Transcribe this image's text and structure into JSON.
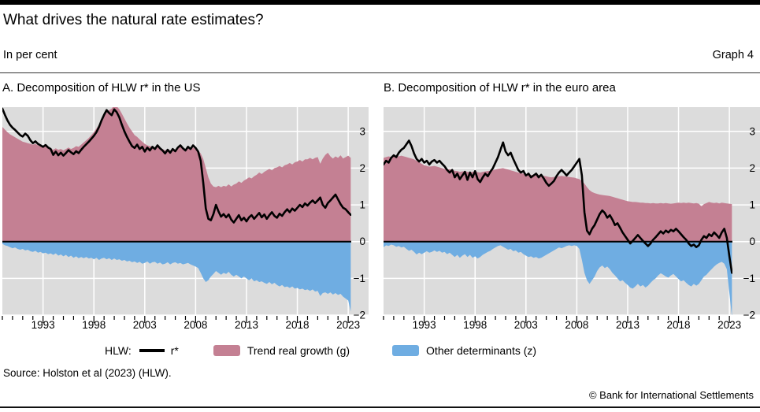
{
  "header": {
    "title": "What drives the natural rate estimates?",
    "subtitle": "In per cent",
    "graph_label": "Graph 4"
  },
  "legend": {
    "prefix": "HLW:",
    "rstar_label": "r*",
    "g_label": "Trend real growth (g)",
    "z_label": "Other determinants (z)"
  },
  "source": "Source: Holston et al (2023) (HLW).",
  "copyright": "© Bank for International Settlements",
  "colors": {
    "g_area": "#c48093",
    "z_area": "#6fade2",
    "line": "#000000",
    "plot_bg": "#dcdcdc",
    "gridline": "#ffffff",
    "zero_line": "#000000"
  },
  "chart_data": [
    {
      "type": "area",
      "title": "A. Decomposition of HLW r* in the US",
      "x_start": 1989.0,
      "x_step_years": 0.25,
      "xlim": [
        1989,
        2023.3
      ],
      "ylim": [
        -2,
        3.66
      ],
      "x_ticks_labeled": [
        1993,
        1998,
        2003,
        2008,
        2013,
        2018,
        2023
      ],
      "y_ticks": [
        3,
        2,
        1,
        0,
        -1,
        -2
      ],
      "y_tick_labels": [
        "3",
        "2",
        "1",
        "0",
        "−1",
        "−2"
      ],
      "grid": true,
      "legend_position": "bottom",
      "series": [
        {
          "name": "Trend real growth (g)",
          "kind": "area",
          "values": [
            3.12,
            3.05,
            2.98,
            2.92,
            2.88,
            2.84,
            2.8,
            2.76,
            2.72,
            2.7,
            2.68,
            2.66,
            2.64,
            2.66,
            2.62,
            2.6,
            2.58,
            2.6,
            2.56,
            2.54,
            2.5,
            2.54,
            2.5,
            2.52,
            2.48,
            2.52,
            2.56,
            2.52,
            2.55,
            2.6,
            2.58,
            2.64,
            2.7,
            2.76,
            2.82,
            2.9,
            2.98,
            3.08,
            3.18,
            3.3,
            3.4,
            3.52,
            3.58,
            3.62,
            3.72,
            3.68,
            3.6,
            3.48,
            3.35,
            3.22,
            3.1,
            3.0,
            2.9,
            2.85,
            2.78,
            2.72,
            2.66,
            2.62,
            2.6,
            2.58,
            2.56,
            2.58,
            2.54,
            2.52,
            2.48,
            2.52,
            2.48,
            2.52,
            2.5,
            2.56,
            2.58,
            2.52,
            2.5,
            2.56,
            2.52,
            2.56,
            2.52,
            2.48,
            2.4,
            2.25,
            2.0,
            1.75,
            1.58,
            1.5,
            1.48,
            1.52,
            1.48,
            1.52,
            1.5,
            1.56,
            1.5,
            1.55,
            1.58,
            1.64,
            1.6,
            1.66,
            1.7,
            1.75,
            1.72,
            1.78,
            1.82,
            1.88,
            1.84,
            1.9,
            1.94,
            1.98,
            1.94,
            2.0,
            2.02,
            2.06,
            2.02,
            2.08,
            2.1,
            2.14,
            2.1,
            2.16,
            2.18,
            2.22,
            2.18,
            2.24,
            2.24,
            2.28,
            2.24,
            2.28,
            2.3,
            2.12,
            2.26,
            2.36,
            2.42,
            2.32,
            2.26,
            2.32,
            2.28,
            2.35,
            2.26,
            2.3,
            2.34,
            2.28
          ]
        },
        {
          "name": "Other determinants (z)",
          "kind": "area",
          "values": [
            -0.06,
            -0.1,
            -0.12,
            -0.15,
            -0.18,
            -0.16,
            -0.2,
            -0.22,
            -0.2,
            -0.24,
            -0.22,
            -0.26,
            -0.28,
            -0.25,
            -0.3,
            -0.28,
            -0.32,
            -0.3,
            -0.34,
            -0.32,
            -0.36,
            -0.32,
            -0.38,
            -0.35,
            -0.4,
            -0.36,
            -0.42,
            -0.38,
            -0.44,
            -0.4,
            -0.45,
            -0.42,
            -0.45,
            -0.42,
            -0.46,
            -0.44,
            -0.48,
            -0.44,
            -0.5,
            -0.46,
            -0.44,
            -0.48,
            -0.45,
            -0.5,
            -0.46,
            -0.5,
            -0.48,
            -0.52,
            -0.5,
            -0.54,
            -0.52,
            -0.56,
            -0.54,
            -0.58,
            -0.55,
            -0.6,
            -0.58,
            -0.54,
            -0.6,
            -0.56,
            -0.55,
            -0.6,
            -0.57,
            -0.62,
            -0.6,
            -0.56,
            -0.62,
            -0.58,
            -0.56,
            -0.6,
            -0.58,
            -0.62,
            -0.6,
            -0.58,
            -0.62,
            -0.65,
            -0.68,
            -0.72,
            -0.85,
            -1.0,
            -1.1,
            -1.05,
            -0.95,
            -0.88,
            -0.8,
            -0.85,
            -0.9,
            -0.85,
            -0.88,
            -0.82,
            -0.9,
            -0.95,
            -0.9,
            -0.95,
            -1.0,
            -0.95,
            -1.0,
            -1.05,
            -1.0,
            -1.08,
            -1.05,
            -1.1,
            -1.08,
            -1.12,
            -1.15,
            -1.1,
            -1.16,
            -1.12,
            -1.18,
            -1.22,
            -1.18,
            -1.24,
            -1.22,
            -1.26,
            -1.22,
            -1.28,
            -1.26,
            -1.3,
            -1.28,
            -1.32,
            -1.3,
            -1.34,
            -1.3,
            -1.36,
            -1.34,
            -1.48,
            -1.4,
            -1.38,
            -1.42,
            -1.38,
            -1.44,
            -1.4,
            -1.45,
            -1.42,
            -1.5,
            -1.55,
            -1.6,
            -1.9
          ]
        },
        {
          "name": "r*",
          "kind": "line",
          "values": [
            3.62,
            3.45,
            3.3,
            3.18,
            3.1,
            3.04,
            2.97,
            2.9,
            2.86,
            2.94,
            2.88,
            2.76,
            2.68,
            2.73,
            2.66,
            2.62,
            2.58,
            2.63,
            2.56,
            2.52,
            2.36,
            2.45,
            2.35,
            2.42,
            2.34,
            2.41,
            2.49,
            2.43,
            2.38,
            2.46,
            2.41,
            2.5,
            2.58,
            2.65,
            2.72,
            2.8,
            2.88,
            2.98,
            3.12,
            3.3,
            3.45,
            3.58,
            3.5,
            3.44,
            3.6,
            3.52,
            3.38,
            3.18,
            3.0,
            2.85,
            2.72,
            2.6,
            2.55,
            2.64,
            2.52,
            2.58,
            2.45,
            2.56,
            2.48,
            2.58,
            2.52,
            2.62,
            2.54,
            2.48,
            2.4,
            2.5,
            2.42,
            2.52,
            2.46,
            2.56,
            2.62,
            2.54,
            2.48,
            2.58,
            2.52,
            2.62,
            2.55,
            2.45,
            2.2,
            1.6,
            0.9,
            0.62,
            0.58,
            0.75,
            1.0,
            0.82,
            0.68,
            0.75,
            0.66,
            0.74,
            0.6,
            0.52,
            0.62,
            0.72,
            0.58,
            0.65,
            0.55,
            0.66,
            0.72,
            0.62,
            0.7,
            0.78,
            0.66,
            0.74,
            0.62,
            0.72,
            0.8,
            0.7,
            0.65,
            0.76,
            0.7,
            0.8,
            0.88,
            0.8,
            0.9,
            0.84,
            0.92,
            1.0,
            0.94,
            1.04,
            0.98,
            1.06,
            1.12,
            1.05,
            1.12,
            1.2,
            1.0,
            0.92,
            1.05,
            1.12,
            1.2,
            1.28,
            1.15,
            1.02,
            0.92,
            0.88,
            0.8,
            0.73
          ]
        }
      ]
    },
    {
      "type": "area",
      "title": "B. Decomposition of HLW r* in the euro area",
      "x_start": 1989.0,
      "x_step_years": 0.25,
      "xlim": [
        1989,
        2023.3
      ],
      "ylim": [
        -2,
        3.66
      ],
      "x_ticks_labeled": [
        1993,
        1998,
        2003,
        2008,
        2013,
        2018,
        2023
      ],
      "y_ticks": [
        3,
        2,
        1,
        0,
        -1,
        -2
      ],
      "y_tick_labels": [
        "3",
        "2",
        "1",
        "0",
        "−1",
        "−2"
      ],
      "grid": true,
      "legend_position": "bottom",
      "series": [
        {
          "name": "Trend real growth (g)",
          "kind": "area",
          "values": [
            2.28,
            2.3,
            2.32,
            2.3,
            2.32,
            2.34,
            2.32,
            2.34,
            2.32,
            2.3,
            2.28,
            2.26,
            2.24,
            2.2,
            2.16,
            2.12,
            2.08,
            2.06,
            2.04,
            2.05,
            2.06,
            2.04,
            2.02,
            2.0,
            1.98,
            1.96,
            1.97,
            1.95,
            1.93,
            1.92,
            1.9,
            1.91,
            1.92,
            1.9,
            1.89,
            1.9,
            1.91,
            1.89,
            1.88,
            1.9,
            1.91,
            1.92,
            1.93,
            1.95,
            1.96,
            1.98,
            1.99,
            2.0,
            1.98,
            1.96,
            1.94,
            1.92,
            1.9,
            1.88,
            1.86,
            1.85,
            1.84,
            1.82,
            1.81,
            1.82,
            1.83,
            1.82,
            1.8,
            1.79,
            1.78,
            1.76,
            1.75,
            1.76,
            1.77,
            1.78,
            1.79,
            1.78,
            1.77,
            1.76,
            1.75,
            1.74,
            1.72,
            1.7,
            1.65,
            1.58,
            1.48,
            1.4,
            1.35,
            1.32,
            1.3,
            1.28,
            1.27,
            1.26,
            1.25,
            1.24,
            1.22,
            1.2,
            1.18,
            1.16,
            1.14,
            1.12,
            1.1,
            1.09,
            1.08,
            1.08,
            1.07,
            1.06,
            1.06,
            1.05,
            1.05,
            1.04,
            1.05,
            1.04,
            1.04,
            1.05,
            1.04,
            1.05,
            1.04,
            1.03,
            1.04,
            1.05,
            1.06,
            1.05,
            1.06,
            1.05,
            1.06,
            1.05,
            1.04,
            1.05,
            1.03,
            0.96,
            1.02,
            1.05,
            1.08,
            1.06,
            1.05,
            1.06,
            1.04,
            1.06,
            1.05,
            1.04,
            1.03,
            1.02
          ]
        },
        {
          "name": "Other determinants (z)",
          "kind": "area",
          "values": [
            -0.15,
            -0.1,
            -0.12,
            -0.08,
            -0.1,
            -0.14,
            -0.12,
            -0.16,
            -0.14,
            -0.2,
            -0.25,
            -0.22,
            -0.28,
            -0.35,
            -0.3,
            -0.34,
            -0.3,
            -0.26,
            -0.3,
            -0.28,
            -0.24,
            -0.28,
            -0.25,
            -0.3,
            -0.28,
            -0.34,
            -0.3,
            -0.36,
            -0.42,
            -0.36,
            -0.44,
            -0.38,
            -0.34,
            -0.42,
            -0.36,
            -0.44,
            -0.4,
            -0.46,
            -0.42,
            -0.36,
            -0.32,
            -0.28,
            -0.25,
            -0.2,
            -0.16,
            -0.12,
            -0.1,
            -0.14,
            -0.18,
            -0.22,
            -0.2,
            -0.26,
            -0.24,
            -0.3,
            -0.28,
            -0.34,
            -0.38,
            -0.42,
            -0.4,
            -0.44,
            -0.42,
            -0.46,
            -0.44,
            -0.4,
            -0.36,
            -0.32,
            -0.28,
            -0.24,
            -0.2,
            -0.16,
            -0.18,
            -0.15,
            -0.12,
            -0.1,
            -0.12,
            -0.1,
            -0.12,
            -0.2,
            -0.5,
            -0.85,
            -1.05,
            -1.15,
            -1.05,
            -0.95,
            -0.8,
            -0.7,
            -0.65,
            -0.72,
            -0.68,
            -0.75,
            -0.85,
            -0.92,
            -1.0,
            -1.08,
            -1.05,
            -1.12,
            -1.18,
            -1.25,
            -1.28,
            -1.22,
            -1.15,
            -1.22,
            -1.18,
            -1.25,
            -1.2,
            -1.12,
            -1.05,
            -1.0,
            -0.92,
            -0.86,
            -0.9,
            -0.95,
            -0.98,
            -0.92,
            -0.88,
            -0.95,
            -1.02,
            -1.08,
            -1.05,
            -1.12,
            -1.18,
            -1.22,
            -1.15,
            -1.2,
            -1.15,
            -1.05,
            -0.95,
            -0.9,
            -0.82,
            -0.75,
            -0.68,
            -0.62,
            -0.58,
            -0.55,
            -0.6,
            -0.75,
            -1.4,
            -2.05
          ]
        },
        {
          "name": "r*",
          "kind": "line",
          "values": [
            2.1,
            2.2,
            2.15,
            2.28,
            2.35,
            2.3,
            2.42,
            2.5,
            2.55,
            2.65,
            2.75,
            2.6,
            2.4,
            2.25,
            2.18,
            2.25,
            2.15,
            2.2,
            2.1,
            2.18,
            2.22,
            2.15,
            2.2,
            2.12,
            2.05,
            1.95,
            1.88,
            1.95,
            1.75,
            1.85,
            1.7,
            1.8,
            1.9,
            1.68,
            1.88,
            1.75,
            1.92,
            1.7,
            1.62,
            1.75,
            1.85,
            1.78,
            1.9,
            2.0,
            2.15,
            2.3,
            2.5,
            2.7,
            2.45,
            2.35,
            2.42,
            2.25,
            2.1,
            1.95,
            1.88,
            1.92,
            1.8,
            1.85,
            1.75,
            1.8,
            1.85,
            1.75,
            1.82,
            1.72,
            1.6,
            1.52,
            1.58,
            1.65,
            1.78,
            1.88,
            1.95,
            1.88,
            1.8,
            1.88,
            1.95,
            2.05,
            2.15,
            2.25,
            1.8,
            0.8,
            0.3,
            0.2,
            0.35,
            0.45,
            0.6,
            0.75,
            0.85,
            0.78,
            0.65,
            0.72,
            0.6,
            0.45,
            0.5,
            0.38,
            0.25,
            0.15,
            0.05,
            -0.05,
            0.02,
            0.1,
            0.18,
            0.1,
            0.02,
            -0.05,
            -0.12,
            -0.05,
            0.05,
            0.12,
            0.2,
            0.28,
            0.22,
            0.3,
            0.25,
            0.32,
            0.28,
            0.35,
            0.28,
            0.2,
            0.12,
            0.05,
            -0.05,
            -0.12,
            -0.08,
            -0.15,
            -0.1,
            0.05,
            0.15,
            0.1,
            0.2,
            0.15,
            0.25,
            0.18,
            0.1,
            0.25,
            0.35,
            0.1,
            -0.4,
            -0.85
          ]
        }
      ]
    }
  ]
}
